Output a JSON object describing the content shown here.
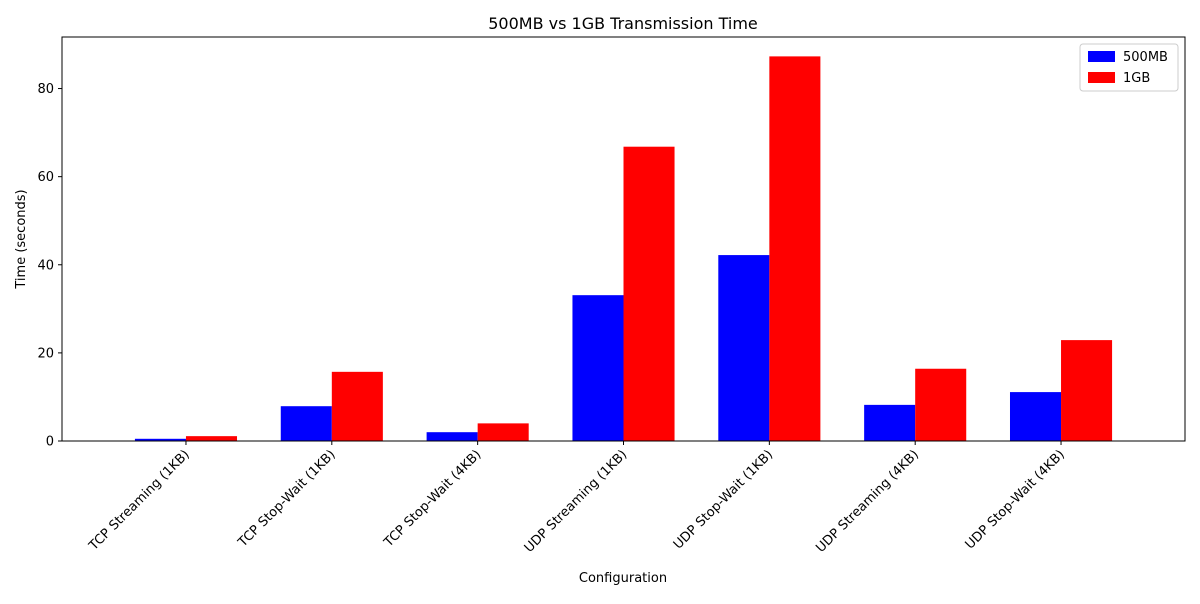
{
  "chart_data": {
    "type": "bar",
    "title": "500MB vs 1GB Transmission Time",
    "xlabel": "Configuration",
    "ylabel": "Time (seconds)",
    "categories": [
      "TCP Streaming (1KB)",
      "TCP Stop-Wait (1KB)",
      "TCP Stop-Wait (4KB)",
      "UDP Streaming (1KB)",
      "UDP Stop-Wait (1KB)",
      "UDP Streaming (4KB)",
      "UDP Stop-Wait (4KB)"
    ],
    "series": [
      {
        "name": "500MB",
        "color": "#0000ff",
        "values": [
          0.5,
          7.9,
          2.0,
          33.1,
          42.2,
          8.2,
          11.1
        ]
      },
      {
        "name": "1GB",
        "color": "#ff0000",
        "values": [
          1.1,
          15.7,
          4.0,
          66.8,
          87.3,
          16.4,
          22.9
        ]
      }
    ],
    "ylim": [
      0,
      91.7
    ],
    "yticks": [
      0,
      20,
      40,
      60,
      80
    ],
    "grid": false,
    "legend_position": "top-right"
  }
}
